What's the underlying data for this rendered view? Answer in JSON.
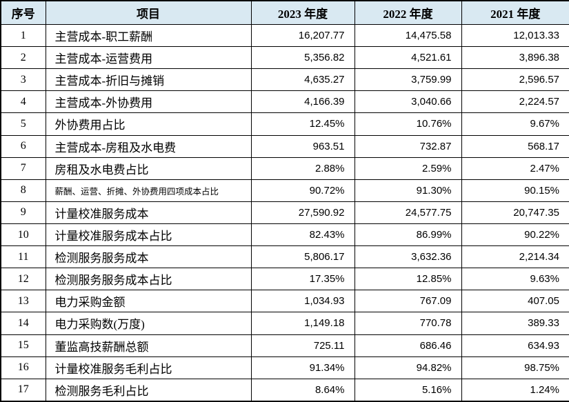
{
  "colors": {
    "header_background": "#d9e9f2",
    "border": "#000000",
    "text": "#000000",
    "row_background": "#ffffff"
  },
  "table": {
    "columns": [
      {
        "key": "no",
        "label": "序号"
      },
      {
        "key": "item",
        "label": "项目"
      },
      {
        "key": "y2023",
        "label": "2023 年度"
      },
      {
        "key": "y2022",
        "label": "2022 年度"
      },
      {
        "key": "y2021",
        "label": "2021 年度"
      }
    ],
    "rows": [
      {
        "no": "1",
        "item": "主营成本-职工薪酬",
        "y2023": "16,207.77",
        "y2022": "14,475.58",
        "y2021": "12,013.33"
      },
      {
        "no": "2",
        "item": "主营成本-运营费用",
        "y2023": "5,356.82",
        "y2022": "4,521.61",
        "y2021": "3,896.38"
      },
      {
        "no": "3",
        "item": "主营成本-折旧与摊销",
        "y2023": "4,635.27",
        "y2022": "3,759.99",
        "y2021": "2,596.57"
      },
      {
        "no": "4",
        "item": "主营成本-外协费用",
        "y2023": "4,166.39",
        "y2022": "3,040.66",
        "y2021": "2,224.57"
      },
      {
        "no": "5",
        "item": "外协费用占比",
        "y2023": "12.45%",
        "y2022": "10.76%",
        "y2021": "9.67%"
      },
      {
        "no": "6",
        "item": "主营成本-房租及水电费",
        "y2023": "963.51",
        "y2022": "732.87",
        "y2021": "568.17"
      },
      {
        "no": "7",
        "item": "房租及水电费占比",
        "y2023": "2.88%",
        "y2022": "2.59%",
        "y2021": "2.47%"
      },
      {
        "no": "8",
        "item": "薪酬、运营、折摊、外协费用四项成本占比",
        "y2023": "90.72%",
        "y2022": "91.30%",
        "y2021": "90.15%"
      },
      {
        "no": "9",
        "item": "计量校准服务成本",
        "y2023": "27,590.92",
        "y2022": "24,577.75",
        "y2021": "20,747.35"
      },
      {
        "no": "10",
        "item": "计量校准服务成本占比",
        "y2023": "82.43%",
        "y2022": "86.99%",
        "y2021": "90.22%"
      },
      {
        "no": "11",
        "item": "检测服务服务成本",
        "y2023": "5,806.17",
        "y2022": "3,632.36",
        "y2021": "2,214.34"
      },
      {
        "no": "12",
        "item": "检测服务服务成本占比",
        "y2023": "17.35%",
        "y2022": "12.85%",
        "y2021": "9.63%"
      },
      {
        "no": "13",
        "item": "电力采购金额",
        "y2023": "1,034.93",
        "y2022": "767.09",
        "y2021": "407.05"
      },
      {
        "no": "14",
        "item": "电力采购数(万度)",
        "y2023": "1,149.18",
        "y2022": "770.78",
        "y2021": "389.33"
      },
      {
        "no": "15",
        "item": "董监高技薪酬总额",
        "y2023": "725.11",
        "y2022": "686.46",
        "y2021": "634.93"
      },
      {
        "no": "16",
        "item": "计量校准服务毛利占比",
        "y2023": "91.34%",
        "y2022": "94.82%",
        "y2021": "98.75%"
      },
      {
        "no": "17",
        "item": "检测服务毛利占比",
        "y2023": "8.64%",
        "y2022": "5.16%",
        "y2021": "1.24%"
      }
    ]
  },
  "chart_data": {
    "type": "table",
    "title": "",
    "categories": [
      "2023",
      "2022",
      "2021"
    ],
    "series": [
      {
        "name": "主营成本-职工薪酬",
        "values": [
          16207.77,
          14475.58,
          12013.33
        ]
      },
      {
        "name": "主营成本-运营费用",
        "values": [
          5356.82,
          4521.61,
          3896.38
        ]
      },
      {
        "name": "主营成本-折旧与摊销",
        "values": [
          4635.27,
          3759.99,
          2596.57
        ]
      },
      {
        "name": "主营成本-外协费用",
        "values": [
          4166.39,
          3040.66,
          2224.57
        ]
      },
      {
        "name": "外协费用占比(%)",
        "values": [
          12.45,
          10.76,
          9.67
        ]
      },
      {
        "name": "主营成本-房租及水电费",
        "values": [
          963.51,
          732.87,
          568.17
        ]
      },
      {
        "name": "房租及水电费占比(%)",
        "values": [
          2.88,
          2.59,
          2.47
        ]
      },
      {
        "name": "薪酬、运营、折摊、外协费用四项成本占比(%)",
        "values": [
          90.72,
          91.3,
          90.15
        ]
      },
      {
        "name": "计量校准服务成本",
        "values": [
          27590.92,
          24577.75,
          20747.35
        ]
      },
      {
        "name": "计量校准服务成本占比(%)",
        "values": [
          82.43,
          86.99,
          90.22
        ]
      },
      {
        "name": "检测服务服务成本",
        "values": [
          5806.17,
          3632.36,
          2214.34
        ]
      },
      {
        "name": "检测服务服务成本占比(%)",
        "values": [
          17.35,
          12.85,
          9.63
        ]
      },
      {
        "name": "电力采购金额",
        "values": [
          1034.93,
          767.09,
          407.05
        ]
      },
      {
        "name": "电力采购数(万度)",
        "values": [
          1149.18,
          770.78,
          389.33
        ]
      },
      {
        "name": "董监高技薪酬总额",
        "values": [
          725.11,
          686.46,
          634.93
        ]
      },
      {
        "name": "计量校准服务毛利占比(%)",
        "values": [
          91.34,
          94.82,
          98.75
        ]
      },
      {
        "name": "检测服务毛利占比(%)",
        "values": [
          8.64,
          5.16,
          1.24
        ]
      }
    ]
  }
}
